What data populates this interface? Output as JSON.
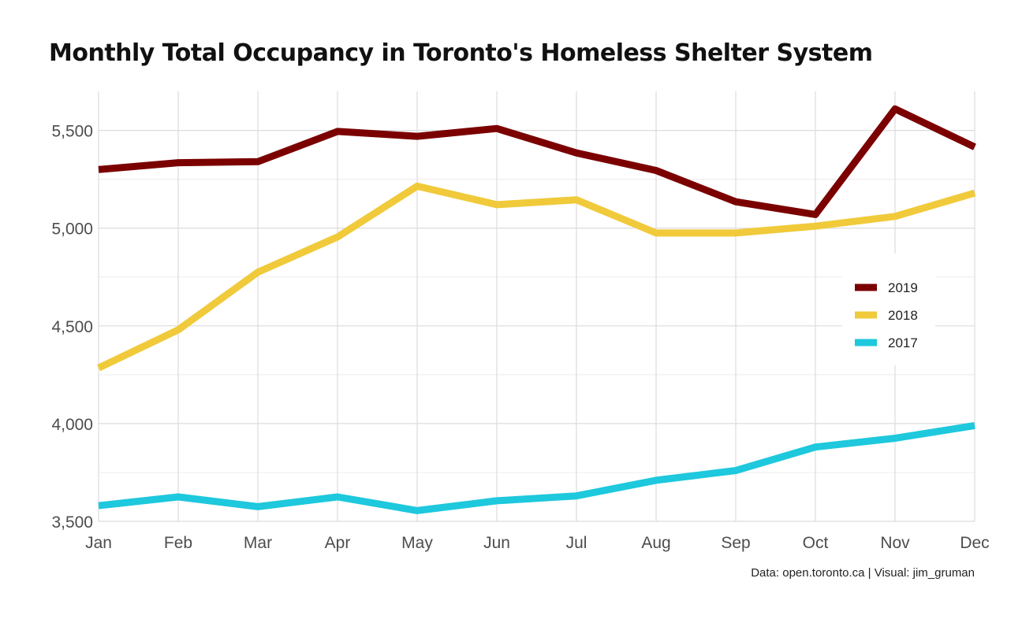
{
  "title": "Monthly Total Occupancy in Toronto's Homeless Shelter System",
  "caption": "Data: open.toronto.ca | Visual: jim_gruman",
  "chart_data": {
    "type": "line",
    "title": "Monthly Total Occupancy in Toronto's Homeless Shelter System",
    "xlabel": "",
    "ylabel": "",
    "x": [
      "Jan",
      "Feb",
      "Mar",
      "Apr",
      "May",
      "Jun",
      "Jul",
      "Aug",
      "Sep",
      "Oct",
      "Nov",
      "Dec"
    ],
    "ylim": [
      3500,
      5700
    ],
    "yticks": [
      3500,
      4000,
      4500,
      5000,
      5500
    ],
    "ytick_labels": [
      "3,500",
      "4,000",
      "4,500",
      "5,000",
      "5,500"
    ],
    "grid": true,
    "legend_position": "right",
    "series": [
      {
        "name": "2019",
        "color": "#7b0000",
        "values": [
          5300,
          5335,
          5340,
          5495,
          5470,
          5510,
          5385,
          5295,
          5135,
          5070,
          5610,
          5415
        ]
      },
      {
        "name": "2018",
        "color": "#f0ca3a",
        "values": [
          4285,
          4480,
          4775,
          4955,
          5215,
          5120,
          5145,
          4975,
          4975,
          5010,
          5060,
          5180
        ]
      },
      {
        "name": "2017",
        "color": "#1ec8dd",
        "values": [
          3580,
          3625,
          3575,
          3625,
          3555,
          3605,
          3630,
          3710,
          3760,
          3880,
          3925,
          3990
        ]
      }
    ]
  }
}
